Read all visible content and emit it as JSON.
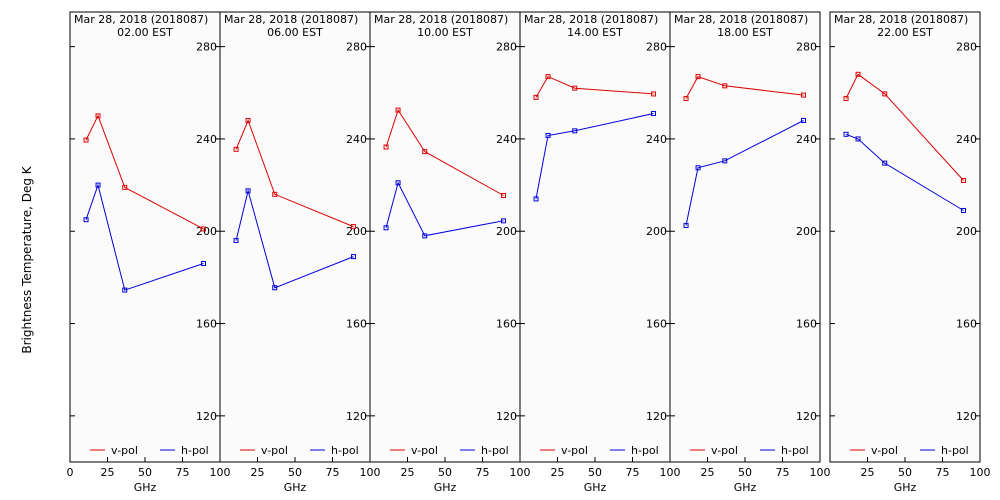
{
  "chart_data": {
    "type": "line",
    "ylabel": "Brightness Temperature, Deg K",
    "y_ticks": [
      120,
      160,
      200,
      240,
      280
    ],
    "ylim": [
      100,
      295
    ],
    "x_ticks": [
      0,
      25,
      50,
      75,
      100
    ],
    "xlim": [
      0,
      100
    ],
    "xlabel": "GHz",
    "colors": {
      "v-pol": "#dd0000",
      "h-pol": "#0000dd"
    },
    "panels": [
      {
        "title": "Mar 28, 2018 (2018087)",
        "subtitle": "02.00 EST",
        "series": [
          {
            "name": "v-pol",
            "x": [
              10.7,
              18.7,
              36.5,
              89
            ],
            "y": [
              239.5,
              250,
              219,
              201
            ]
          },
          {
            "name": "h-pol",
            "x": [
              10.7,
              18.7,
              36.5,
              89
            ],
            "y": [
              205,
              220,
              174.5,
              186
            ]
          }
        ]
      },
      {
        "title": "Mar 28, 2018 (2018087)",
        "subtitle": "06.00 EST",
        "series": [
          {
            "name": "v-pol",
            "x": [
              10.7,
              18.7,
              36.5,
              89
            ],
            "y": [
              235.5,
              248,
              216,
              202
            ]
          },
          {
            "name": "h-pol",
            "x": [
              10.7,
              18.7,
              36.5,
              89
            ],
            "y": [
              196,
              217.5,
              175.5,
              189
            ]
          }
        ]
      },
      {
        "title": "Mar 28, 2018 (2018087)",
        "subtitle": "10.00 EST",
        "series": [
          {
            "name": "v-pol",
            "x": [
              10.7,
              18.7,
              36.5,
              89
            ],
            "y": [
              236.5,
              252.5,
              234.5,
              215.5
            ]
          },
          {
            "name": "h-pol",
            "x": [
              10.7,
              18.7,
              36.5,
              89
            ],
            "y": [
              201.5,
              221,
              198,
              204.5
            ]
          }
        ]
      },
      {
        "title": "Mar 28, 2018 (2018087)",
        "subtitle": "14.00 EST",
        "series": [
          {
            "name": "v-pol",
            "x": [
              10.7,
              18.7,
              36.5,
              89
            ],
            "y": [
              258,
              267,
              262,
              259.5
            ]
          },
          {
            "name": "h-pol",
            "x": [
              10.7,
              18.7,
              36.5,
              89
            ],
            "y": [
              214,
              241.5,
              243.5,
              251
            ]
          }
        ]
      },
      {
        "title": "Mar 28, 2018 (2018087)",
        "subtitle": "18.00 EST",
        "series": [
          {
            "name": "v-pol",
            "x": [
              10.7,
              18.7,
              36.5,
              89
            ],
            "y": [
              257.5,
              267,
              263,
              259
            ]
          },
          {
            "name": "h-pol",
            "x": [
              10.7,
              18.7,
              36.5,
              89
            ],
            "y": [
              202.5,
              227.5,
              230.5,
              248
            ]
          }
        ]
      },
      {
        "title": "Mar 28, 2018 (2018087)",
        "subtitle": "22.00 EST",
        "series": [
          {
            "name": "v-pol",
            "x": [
              10.7,
              18.7,
              36.5,
              89
            ],
            "y": [
              257.5,
              268,
              259.5,
              222
            ]
          },
          {
            "name": "h-pol",
            "x": [
              10.7,
              18.7,
              36.5,
              89
            ],
            "y": [
              242,
              240,
              229.5,
              209
            ]
          }
        ]
      }
    ],
    "legend": {
      "placement": "bottom",
      "entries": [
        "v-pol",
        "h-pol"
      ]
    },
    "grid": false
  }
}
